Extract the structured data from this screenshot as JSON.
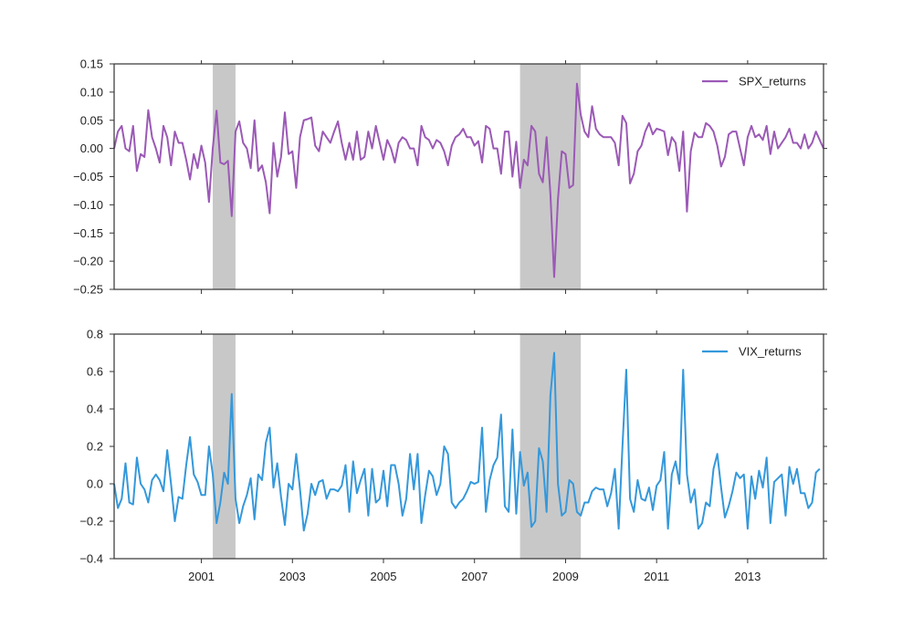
{
  "chart_data": [
    {
      "type": "line",
      "panel": "top",
      "x_start": "1999-02",
      "x_frequency": "monthly",
      "ylim": [
        -0.25,
        0.15
      ],
      "y_ticks": [
        "0.15",
        "0.10",
        "0.05",
        "0.00",
        "−0.05",
        "−0.10",
        "−0.15",
        "−0.20",
        "−0.25"
      ],
      "y_tick_values": [
        0.15,
        0.1,
        0.05,
        0.0,
        -0.05,
        -0.1,
        -0.15,
        -0.2,
        -0.25
      ],
      "shaded_periods": [
        [
          "2001-04",
          "2001-10"
        ],
        [
          "2008-01",
          "2009-05"
        ]
      ],
      "legend_position": "top-right",
      "series": [
        {
          "name": "SPX_returns",
          "color": "#9b59b6",
          "values": [
            0.0,
            0.03,
            0.04,
            0.0,
            -0.005,
            0.04,
            -0.04,
            -0.01,
            -0.015,
            0.068,
            0.02,
            0.0,
            -0.025,
            0.04,
            0.02,
            -0.03,
            0.03,
            0.01,
            0.01,
            -0.02,
            -0.055,
            -0.01,
            -0.035,
            0.005,
            -0.025,
            -0.095,
            0.0,
            0.067,
            -0.025,
            -0.028,
            -0.022,
            -0.12,
            0.03,
            0.048,
            0.01,
            0.0,
            -0.035,
            0.05,
            -0.04,
            -0.03,
            -0.06,
            -0.115,
            0.01,
            -0.05,
            -0.015,
            0.064,
            -0.01,
            -0.005,
            -0.07,
            0.02,
            0.05,
            0.052,
            0.055,
            0.005,
            -0.005,
            0.03,
            0.02,
            0.01,
            0.03,
            0.048,
            0.01,
            -0.02,
            0.01,
            -0.02,
            0.03,
            -0.02,
            -0.015,
            0.03,
            0.0,
            0.04,
            0.01,
            -0.02,
            0.015,
            0.0,
            -0.025,
            0.01,
            0.02,
            0.015,
            0.0,
            0.0,
            -0.03,
            0.04,
            0.02,
            0.015,
            0.0,
            0.015,
            0.01,
            -0.005,
            -0.03,
            0.005,
            0.02,
            0.025,
            0.035,
            0.02,
            0.02,
            0.005,
            0.013,
            -0.025,
            0.04,
            0.035,
            0.0,
            0.0,
            -0.045,
            0.03,
            0.03,
            -0.05,
            0.012,
            -0.07,
            -0.02,
            -0.03,
            0.04,
            0.03,
            -0.045,
            -0.06,
            0.02,
            -0.08,
            -0.228,
            -0.09,
            -0.005,
            -0.01,
            -0.07,
            -0.065,
            0.115,
            0.06,
            0.03,
            0.02,
            0.075,
            0.035,
            0.025,
            0.02,
            0.02,
            0.02,
            0.01,
            -0.03,
            0.058,
            0.045,
            -0.062,
            -0.045,
            -0.005,
            0.005,
            0.03,
            0.045,
            0.025,
            0.035,
            0.033,
            0.03,
            -0.012,
            0.02,
            0.01,
            -0.04,
            0.03,
            -0.112,
            -0.005,
            0.028,
            0.02,
            0.02,
            0.045,
            0.04,
            0.03,
            0.005,
            -0.032,
            -0.015,
            0.025,
            0.03,
            0.03,
            0.0,
            -0.03,
            0.02,
            0.04,
            0.02,
            0.025,
            0.015,
            0.04,
            -0.01,
            0.03,
            0.0,
            0.01,
            0.02,
            0.035,
            0.01,
            0.01,
            0.0,
            0.025,
            0.0,
            0.01,
            0.03,
            0.015,
            0.0
          ]
        }
      ]
    },
    {
      "type": "line",
      "panel": "bottom",
      "x_start": "1999-02",
      "x_frequency": "monthly",
      "ylim": [
        -0.4,
        0.8
      ],
      "y_ticks": [
        "0.8",
        "0.6",
        "0.4",
        "0.2",
        "0.0",
        "−0.2",
        "−0.4"
      ],
      "y_tick_values": [
        0.8,
        0.6,
        0.4,
        0.2,
        0.0,
        -0.2,
        -0.4
      ],
      "x_ticks": [
        "2001",
        "2003",
        "2005",
        "2007",
        "2009",
        "2011",
        "2013"
      ],
      "x_tick_years": [
        2001,
        2003,
        2005,
        2007,
        2009,
        2011,
        2013
      ],
      "shaded_periods": [
        [
          "2001-04",
          "2001-10"
        ],
        [
          "2008-01",
          "2009-05"
        ]
      ],
      "legend_position": "top-right",
      "series": [
        {
          "name": "VIX_returns",
          "color": "#3498db",
          "values": [
            0.0,
            -0.13,
            -0.08,
            0.11,
            -0.1,
            -0.11,
            0.14,
            0.0,
            -0.03,
            -0.1,
            0.02,
            0.05,
            0.02,
            -0.04,
            0.18,
            0.0,
            -0.2,
            -0.07,
            -0.08,
            0.1,
            0.25,
            0.05,
            0.01,
            -0.06,
            -0.06,
            0.2,
            0.05,
            -0.21,
            -0.1,
            0.06,
            0.0,
            0.48,
            -0.08,
            -0.21,
            -0.12,
            -0.06,
            0.03,
            -0.19,
            0.05,
            0.02,
            0.22,
            0.3,
            -0.02,
            0.11,
            -0.07,
            -0.22,
            0.0,
            -0.03,
            0.16,
            -0.03,
            -0.25,
            -0.16,
            0.0,
            -0.06,
            0.01,
            0.02,
            -0.08,
            -0.03,
            -0.03,
            -0.04,
            -0.01,
            0.1,
            -0.15,
            0.12,
            -0.05,
            0.02,
            0.08,
            -0.17,
            0.08,
            -0.1,
            -0.08,
            0.07,
            -0.12,
            0.1,
            0.1,
            0.0,
            -0.17,
            -0.08,
            0.16,
            -0.03,
            0.16,
            -0.21,
            -0.06,
            0.07,
            0.04,
            -0.06,
            0.0,
            0.2,
            0.16,
            -0.1,
            -0.13,
            -0.1,
            -0.08,
            -0.04,
            0.01,
            0.0,
            0.01,
            0.3,
            -0.15,
            0.02,
            0.1,
            0.14,
            0.37,
            -0.12,
            -0.15,
            0.29,
            -0.16,
            0.17,
            -0.01,
            0.06,
            -0.23,
            -0.2,
            0.19,
            0.12,
            -0.15,
            0.47,
            0.7,
            0.0,
            -0.17,
            -0.15,
            0.02,
            0.0,
            -0.15,
            -0.17,
            -0.1,
            -0.1,
            -0.04,
            -0.02,
            -0.03,
            -0.03,
            -0.12,
            -0.05,
            0.08,
            -0.24,
            0.2,
            0.61,
            -0.08,
            -0.15,
            0.02,
            -0.08,
            -0.09,
            -0.02,
            -0.14,
            -0.01,
            0.02,
            0.17,
            -0.24,
            0.05,
            0.12,
            0.0,
            0.61,
            0.05,
            -0.1,
            -0.03,
            -0.24,
            -0.21,
            -0.1,
            -0.12,
            0.08,
            0.16,
            -0.02,
            -0.18,
            -0.12,
            -0.04,
            0.06,
            0.03,
            0.05,
            -0.24,
            0.04,
            -0.08,
            0.07,
            -0.02,
            0.14,
            -0.21,
            0.01,
            0.03,
            0.05,
            -0.17,
            0.09,
            0.0,
            0.08,
            -0.05,
            -0.05,
            -0.13,
            -0.1,
            0.06,
            0.08
          ]
        }
      ]
    }
  ]
}
